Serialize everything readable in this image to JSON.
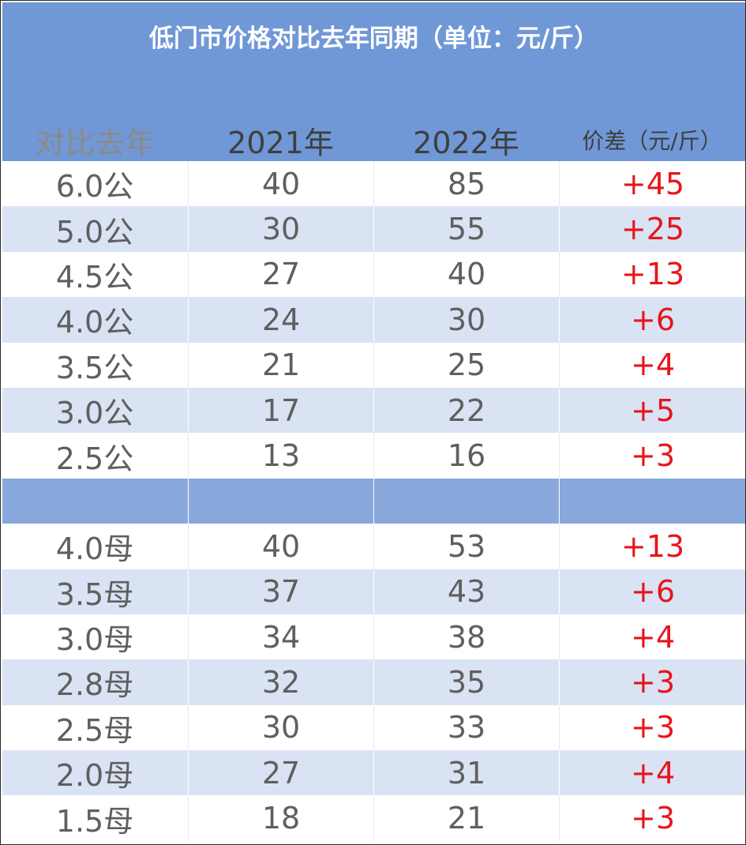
{
  "title": "低门市价格对比去年同期（单位：元/斤）",
  "headers": [
    "对比去年",
    "2021年",
    "2022年",
    "价差（元/斤）"
  ],
  "colors": {
    "header_bg": "#7098d6",
    "band": "#d9e3f3",
    "separator": "#89a8dc",
    "positive_diff": "#e8141c"
  },
  "gong_rows": [
    {
      "spec": "6.0公",
      "y2021": "40",
      "y2022": "85",
      "diff": "+45"
    },
    {
      "spec": "5.0公",
      "y2021": "30",
      "y2022": "55",
      "diff": "+25"
    },
    {
      "spec": "4.5公",
      "y2021": "27",
      "y2022": "40",
      "diff": "+13"
    },
    {
      "spec": "4.0公",
      "y2021": "24",
      "y2022": "30",
      "diff": "+6"
    },
    {
      "spec": "3.5公",
      "y2021": "21",
      "y2022": "25",
      "diff": "+4"
    },
    {
      "spec": "3.0公",
      "y2021": "17",
      "y2022": "22",
      "diff": "+5"
    },
    {
      "spec": "2.5公",
      "y2021": "13",
      "y2022": "16",
      "diff": "+3"
    }
  ],
  "mu_rows": [
    {
      "spec": "4.0母",
      "y2021": "40",
      "y2022": "53",
      "diff": "+13"
    },
    {
      "spec": "3.5母",
      "y2021": "37",
      "y2022": "43",
      "diff": "+6"
    },
    {
      "spec": "3.0母",
      "y2021": "34",
      "y2022": "38",
      "diff": "+4"
    },
    {
      "spec": "2.8母",
      "y2021": "32",
      "y2022": "35",
      "diff": "+3"
    },
    {
      "spec": "2.5母",
      "y2021": "30",
      "y2022": "33",
      "diff": "+3"
    },
    {
      "spec": "2.0母",
      "y2021": "27",
      "y2022": "31",
      "diff": "+4"
    },
    {
      "spec": "1.5母",
      "y2021": "18",
      "y2022": "21",
      "diff": "+3"
    }
  ]
}
